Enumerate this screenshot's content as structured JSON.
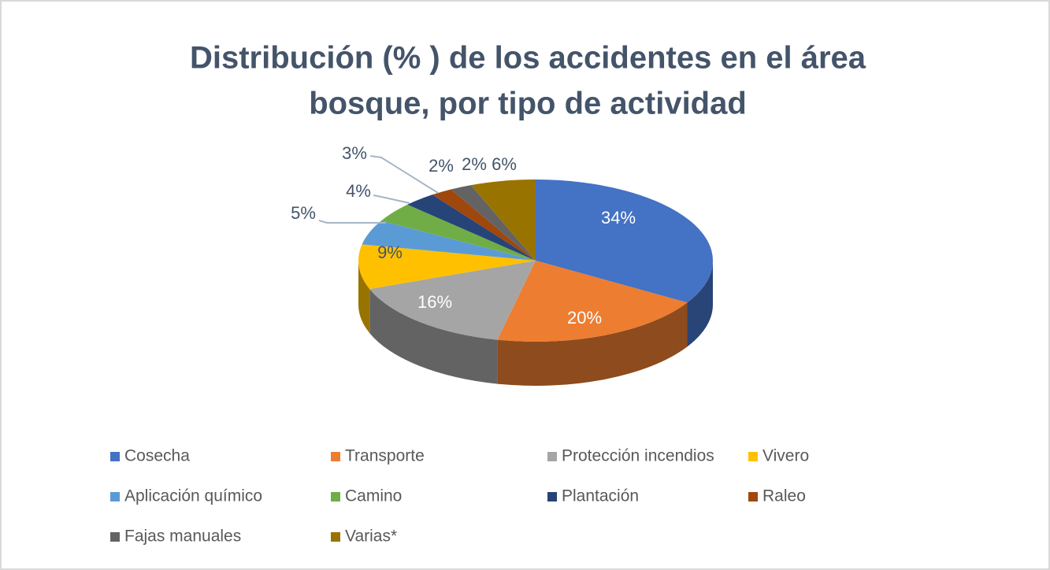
{
  "chart_data": {
    "type": "pie3d",
    "title": [
      "Distribución (% ) de los accidentes en el área",
      "bosque, por tipo de actividad"
    ],
    "categories": [
      "Cosecha",
      "Transporte",
      "Protección incendios",
      "Vivero",
      "Aplicación químico",
      "Camino",
      "Plantación",
      "Raleo",
      "Fajas manuales",
      "Varias*"
    ],
    "values": [
      34,
      20,
      16,
      9,
      5,
      4,
      3,
      2,
      2,
      6
    ],
    "value_labels": [
      "34%",
      "20%",
      "16%",
      "9%",
      "5%",
      "4%",
      "3%",
      "2%",
      "2%",
      "6%"
    ],
    "colors": [
      "#4472c4",
      "#ed7d31",
      "#a5a5a5",
      "#ffc000",
      "#5b9bd5",
      "#70ad47",
      "#264478",
      "#9e480e",
      "#636363",
      "#997300"
    ],
    "legend": "bottom"
  }
}
